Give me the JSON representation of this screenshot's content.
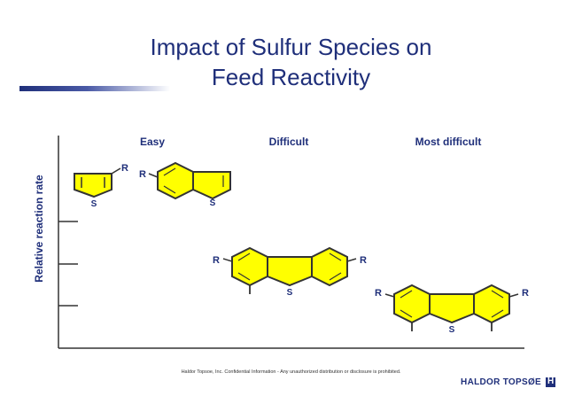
{
  "slide": {
    "title_line1": "Impact of Sulfur Species on",
    "title_line2": "Feed Reactivity",
    "footer_note": "Haldor Topsoe, Inc. Confidential Information - Any unauthorized distribution or disclosure is prohibited.",
    "brand": "HALDOR TOPSØE"
  },
  "diagram": {
    "y_axis_label": "Relative reaction rate",
    "categories": [
      "Easy",
      "Difficult",
      "Most difficult"
    ],
    "substituent_label": "R",
    "heteroatom_label": "S"
  },
  "colors": {
    "accent": "#1f2f7a",
    "ring_fill": "#ffff00",
    "bond": "#333333"
  }
}
